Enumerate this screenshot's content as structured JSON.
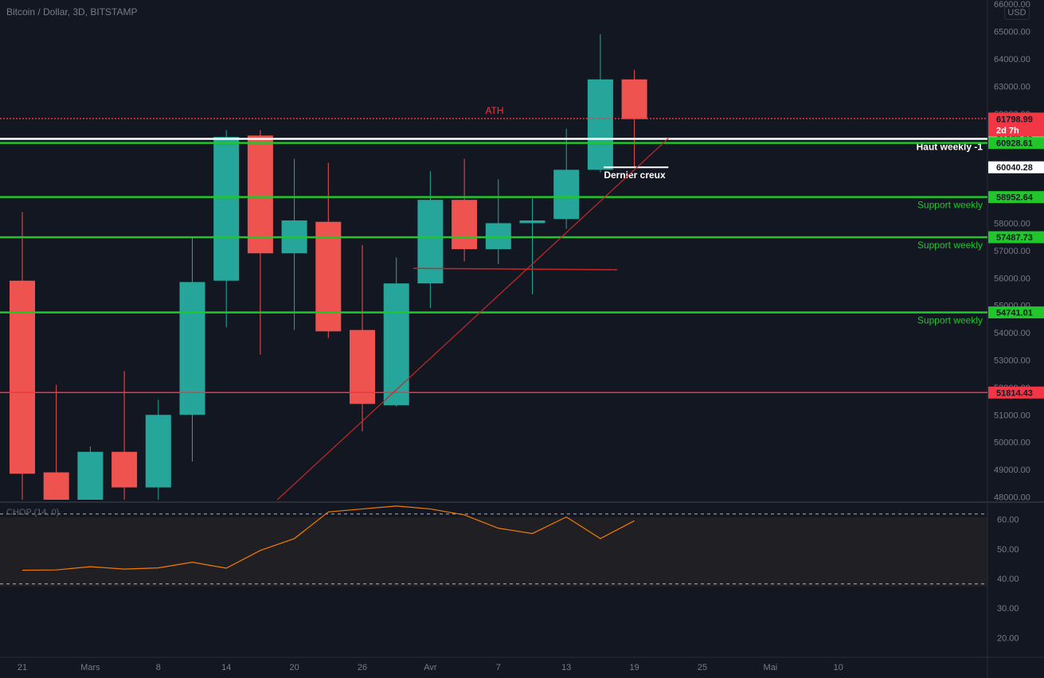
{
  "header": {
    "title": "Bitcoin / Dollar, 3D, BITSTAMP",
    "currency": "USD"
  },
  "indicator": {
    "label": "CHOP (14, 0)",
    "axis_ticks": [
      20,
      30,
      40,
      50,
      60
    ],
    "upper_band": 61.8,
    "lower_band": 38.2,
    "line_color": "#f57c00"
  },
  "colors": {
    "up": "#26a69a",
    "down": "#ef5350",
    "support": "#21c62b",
    "resistance": "#f23645",
    "white": "#ffffff",
    "background": "#131722"
  },
  "annotations": {
    "ath_label": "ATH",
    "countdown": "2d 7h",
    "haut_weekly": "Haut weekly -1",
    "dernier_creux": "Dernier creux",
    "support_label": "Support weekly"
  },
  "chart_data": {
    "type": "candlestick",
    "x_ticks": [
      "21",
      "Mars",
      "8",
      "14",
      "20",
      "26",
      "Avr",
      "7",
      "13",
      "19",
      "25",
      "Mai",
      "10"
    ],
    "y_ticks": [
      48000,
      49000,
      50000,
      51000,
      52000,
      53000,
      54000,
      55000,
      56000,
      57000,
      58000,
      59000,
      60000,
      61000,
      62000,
      63000,
      64000,
      65000,
      66000
    ],
    "ylim": [
      47900,
      66150
    ],
    "candles": [
      {
        "open": 55900,
        "high": 58400,
        "low": 47500,
        "close": 48850
      },
      {
        "open": 48900,
        "high": 52100,
        "low": 46200,
        "close": 47900
      },
      {
        "open": 47900,
        "high": 49850,
        "low": 47400,
        "close": 49650
      },
      {
        "open": 49650,
        "high": 52600,
        "low": 47300,
        "close": 48350
      },
      {
        "open": 48350,
        "high": 51550,
        "low": 47900,
        "close": 51000
      },
      {
        "open": 51000,
        "high": 57500,
        "low": 49300,
        "close": 55850
      },
      {
        "open": 55900,
        "high": 61400,
        "low": 54200,
        "close": 61150
      },
      {
        "open": 61200,
        "high": 61400,
        "low": 53200,
        "close": 56900
      },
      {
        "open": 56900,
        "high": 60350,
        "low": 54100,
        "close": 58100
      },
      {
        "open": 58050,
        "high": 60200,
        "low": 53800,
        "close": 54050
      },
      {
        "open": 54100,
        "high": 57200,
        "low": 50400,
        "close": 51400
      },
      {
        "open": 51350,
        "high": 56750,
        "low": 51300,
        "close": 55800
      },
      {
        "open": 55800,
        "high": 59900,
        "low": 54900,
        "close": 58850
      },
      {
        "open": 58850,
        "high": 60350,
        "low": 56600,
        "close": 57050
      },
      {
        "open": 57050,
        "high": 59600,
        "low": 56500,
        "close": 58000
      },
      {
        "open": 58000,
        "high": 58900,
        "low": 55400,
        "close": 58100
      },
      {
        "open": 58150,
        "high": 61450,
        "low": 57800,
        "close": 59950
      },
      {
        "open": 59950,
        "high": 64900,
        "low": 59850,
        "close": 63250
      },
      {
        "open": 63250,
        "high": 63600,
        "low": 60050,
        "close": 61800
      }
    ],
    "levels": [
      {
        "price": 61820.48,
        "label": "61820.48",
        "kind": "resistance",
        "style": "dotted",
        "text": "ATH"
      },
      {
        "price": 61798.99,
        "label": "61798.99",
        "kind": "resistance",
        "style": "none",
        "text": ""
      },
      {
        "price": 61077.8,
        "label": "61077.80",
        "kind": "white",
        "style": "solid",
        "text": "Haut weekly -1"
      },
      {
        "price": 60928.61,
        "label": "60928.61",
        "kind": "support",
        "style": "solid",
        "text": ""
      },
      {
        "price": 60040.28,
        "label": "60040.28",
        "kind": "white",
        "style": "partial",
        "text": "Dernier creux"
      },
      {
        "price": 58952.64,
        "label": "58952.64",
        "kind": "support",
        "style": "solid",
        "text": "Support weekly"
      },
      {
        "price": 57487.73,
        "label": "57487.73",
        "kind": "support",
        "style": "solid",
        "text": "Support weekly"
      },
      {
        "price": 54741.01,
        "label": "54741.01",
        "kind": "support",
        "style": "solid",
        "text": "Support weekly"
      },
      {
        "price": 51814.43,
        "label": "51814.43",
        "kind": "resistance",
        "style": "solid",
        "text": ""
      }
    ],
    "trendline": {
      "from": {
        "candle": 7.5,
        "price": 47900
      },
      "to": {
        "candle": 19,
        "price": 61100
      }
    },
    "hline_segment": {
      "from_candle": 11.5,
      "to_candle": 17.5,
      "price": 56350,
      "end_price": 56300
    },
    "chop_values": [
      42.8,
      42.9,
      44,
      43.2,
      43.6,
      45.5,
      43.5,
      49.5,
      53.5,
      62.5,
      63.5,
      64.5,
      63.5,
      61.5,
      57,
      55.2,
      60.8,
      53.5,
      59.5
    ]
  }
}
